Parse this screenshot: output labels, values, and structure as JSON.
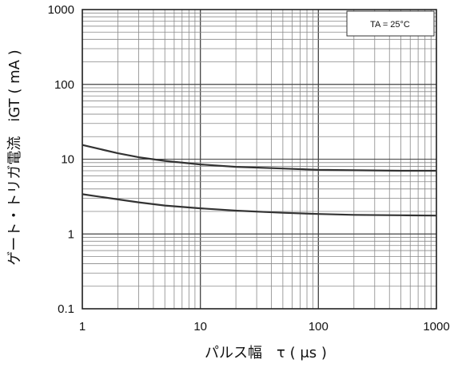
{
  "chart_data": {
    "type": "line",
    "x_scale": "log",
    "y_scale": "log",
    "xlim": [
      1,
      1000
    ],
    "ylim": [
      0.1,
      1000
    ],
    "xlabel": "パルス幅　τ ( μs )",
    "ylabel": "ゲート・トリガ電流　iGT ( mA )",
    "x_ticks": [
      "1",
      "10",
      "100",
      "1000"
    ],
    "y_ticks": [
      "0.1",
      "1",
      "10",
      "100",
      "1000"
    ],
    "grid": true,
    "annotation": "TA = 25°C",
    "annotation_position": "top-right",
    "line_color": "#333333",
    "series": [
      {
        "x": [
          1,
          2,
          3,
          5,
          10,
          20,
          50,
          100,
          200,
          500,
          1000
        ],
        "y": [
          15.5,
          12,
          10.6,
          9.5,
          8.5,
          7.9,
          7.5,
          7.2,
          7.1,
          7.0,
          7.0
        ]
      },
      {
        "x": [
          1,
          2,
          3,
          5,
          10,
          20,
          50,
          100,
          200,
          500,
          1000
        ],
        "y": [
          3.4,
          2.9,
          2.65,
          2.4,
          2.2,
          2.05,
          1.92,
          1.85,
          1.8,
          1.78,
          1.76
        ]
      }
    ]
  }
}
